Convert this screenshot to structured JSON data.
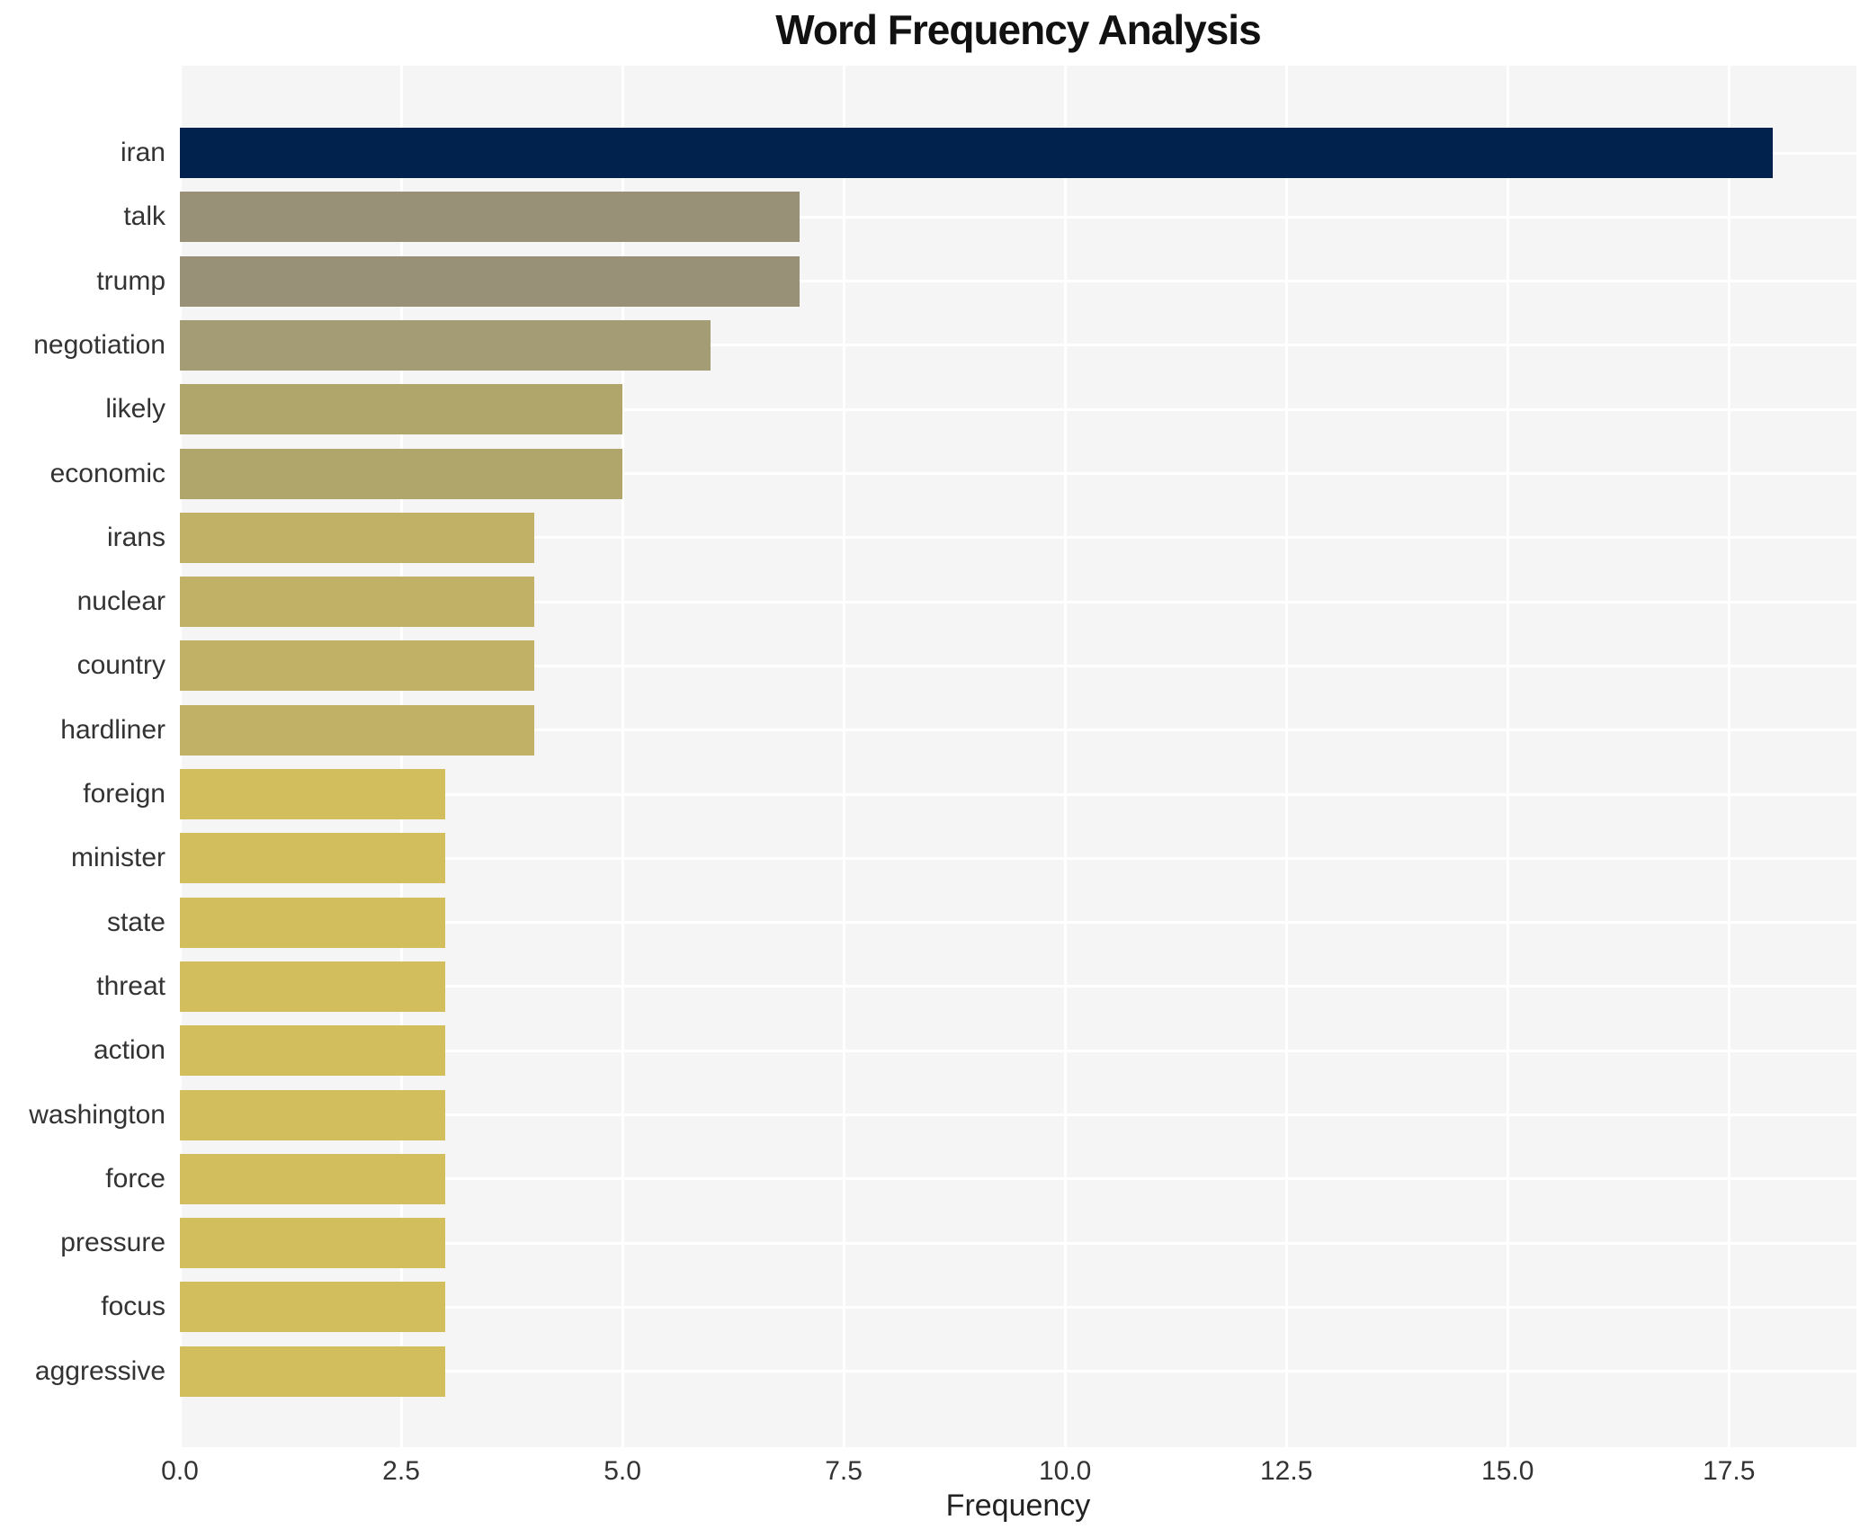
{
  "chart_data": {
    "type": "bar",
    "orientation": "horizontal",
    "title": "Word Frequency Analysis",
    "xlabel": "Frequency",
    "ylabel": "",
    "categories": [
      "iran",
      "talk",
      "trump",
      "negotiation",
      "likely",
      "economic",
      "irans",
      "nuclear",
      "country",
      "hardliner",
      "foreign",
      "minister",
      "state",
      "threat",
      "action",
      "washington",
      "force",
      "pressure",
      "focus",
      "aggressive"
    ],
    "values": [
      18,
      7,
      7,
      6,
      5,
      5,
      4,
      4,
      4,
      4,
      3,
      3,
      3,
      3,
      3,
      3,
      3,
      3,
      3,
      3
    ],
    "bar_colors": [
      "#01224d",
      "#989077",
      "#989077",
      "#a49c75",
      "#b0a66b",
      "#b0a66b",
      "#c0b166",
      "#c0b166",
      "#c0b166",
      "#c0b166",
      "#d2be5c",
      "#d2be5c",
      "#d2be5c",
      "#d2be5c",
      "#d2be5c",
      "#d2be5c",
      "#d2be5c",
      "#d2be5c",
      "#d2be5c",
      "#d2be5c"
    ],
    "xticks": [
      0,
      2.5,
      5,
      7.5,
      10,
      12.5,
      15,
      17.5
    ],
    "xtick_labels": [
      "0.0",
      "2.5",
      "5.0",
      "7.5",
      "10.0",
      "12.5",
      "15.0",
      "17.5"
    ],
    "xlim": [
      0,
      18.94
    ],
    "grid": true,
    "legend": false
  },
  "colors": {
    "figure_background": "#ffffff",
    "plot_background": "#f5f5f6",
    "gridline": "#ffffff",
    "title_text": "#111111",
    "tick_text": "#333333",
    "axis_label_text": "#222222"
  }
}
